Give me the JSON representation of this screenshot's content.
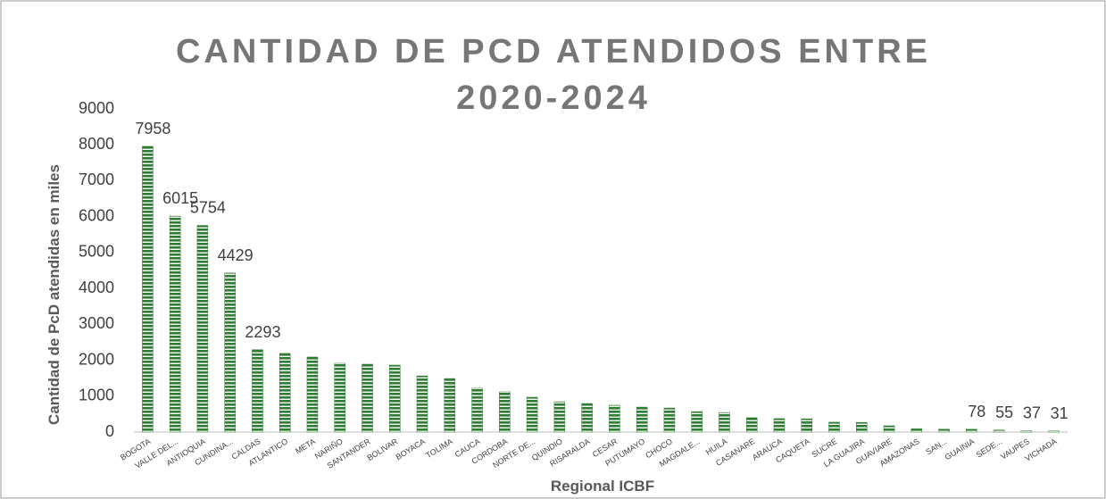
{
  "chart_data": {
    "type": "bar",
    "title": "CANTIDAD DE PCD ATENDIDOS ENTRE 2020-2024",
    "x_label": "Regional ICBF",
    "y_label": "Cantidad de PcD atendidas en miles",
    "categories": [
      "BOGOTA",
      "VALLE DEL...",
      "ANTIOQUIA",
      "CUNDINA...",
      "CALDAS",
      "ATLANTICO",
      "META",
      "NARIÑO",
      "SANTANDER",
      "BOLIVAR",
      "BOYACA",
      "TOLIMA",
      "CAUCA",
      "CORDOBA",
      "NORTE DE...",
      "QUINDIO",
      "RISARALDA",
      "CESAR",
      "PUTUMAYO",
      "CHOCO",
      "MAGDALE...",
      "HUILA",
      "CASANARE",
      "ARAUCA",
      "CAQUETA",
      "SUCRE",
      "LA GUAJIRA",
      "GUAVIARE",
      "AMAZONAS",
      "SAN...",
      "GUAINIA",
      "SEDE...",
      "VAUPES",
      "VICHADA"
    ],
    "values": [
      7958,
      6015,
      5754,
      4429,
      2293,
      2190,
      2090,
      1915,
      1890,
      1865,
      1565,
      1490,
      1220,
      1120,
      970,
      845,
      795,
      745,
      695,
      670,
      570,
      545,
      400,
      375,
      370,
      275,
      270,
      175,
      90,
      80,
      78,
      55,
      37,
      31
    ],
    "value_labels": [
      "7958",
      "6015",
      "5754",
      "4429",
      "2293",
      null,
      null,
      null,
      null,
      null,
      null,
      null,
      null,
      null,
      null,
      null,
      null,
      null,
      null,
      null,
      null,
      null,
      null,
      null,
      null,
      null,
      null,
      null,
      null,
      null,
      "78",
      "55",
      "37",
      "31"
    ],
    "color": "#2e7d32",
    "ylim": [
      0,
      9000
    ],
    "yticks": [
      0,
      1000,
      2000,
      3000,
      4000,
      5000,
      6000,
      7000,
      8000,
      9000
    ],
    "grid": false
  }
}
